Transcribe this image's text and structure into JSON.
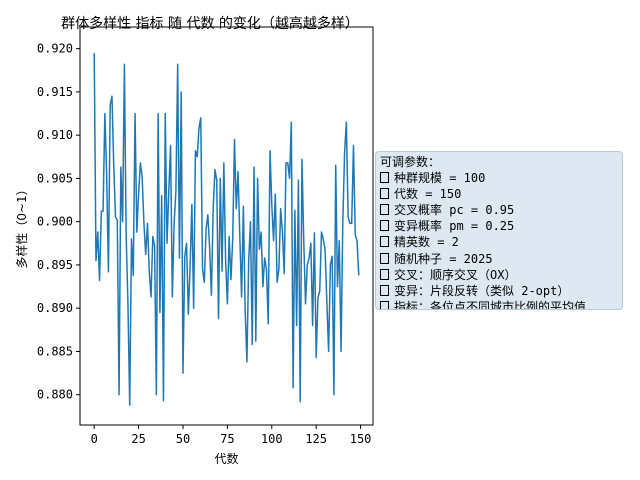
{
  "chart_data": {
    "type": "line",
    "title": "群体多样性 指标 随 代数 的变化（越高越多样）",
    "xlabel": "代数",
    "ylabel": "多样性（0~1）",
    "xlim": [
      -8,
      157
    ],
    "ylim": [
      0.8765,
      0.9225
    ],
    "xticks": [
      0,
      25,
      50,
      75,
      100,
      125,
      150
    ],
    "yticks": [
      0.88,
      0.885,
      0.89,
      0.895,
      0.9,
      0.905,
      0.91,
      0.915,
      0.92
    ],
    "grid": false,
    "line_color": "#1f77b4",
    "series": [
      {
        "x": [
          0,
          1,
          2,
          3,
          4,
          5,
          6,
          7,
          8,
          9,
          10,
          11,
          12,
          13,
          14,
          15,
          16,
          17,
          18,
          19,
          20,
          21,
          22,
          23,
          24,
          25,
          26,
          27,
          28,
          29,
          30,
          31,
          32,
          33,
          34,
          35,
          36,
          37,
          38,
          39,
          40,
          41,
          42,
          43,
          44,
          45,
          46,
          47,
          48,
          49,
          50,
          51,
          52,
          53,
          54,
          55,
          56,
          57,
          58,
          59,
          60,
          61,
          62,
          63,
          64,
          65,
          66,
          67,
          68,
          69,
          70,
          71,
          72,
          73,
          74,
          75,
          76,
          77,
          78,
          79,
          80,
          81,
          82,
          83,
          84,
          85,
          86,
          87,
          88,
          89,
          90,
          91,
          92,
          93,
          94,
          95,
          96,
          97,
          98,
          99,
          100,
          101,
          102,
          103,
          104,
          105,
          106,
          107,
          108,
          109,
          110,
          111,
          112,
          113,
          114,
          115,
          116,
          117,
          118,
          119,
          120,
          121,
          122,
          123,
          124,
          125,
          126,
          127,
          128,
          129,
          130,
          131,
          132,
          133,
          134,
          135,
          136,
          137,
          138,
          139,
          140,
          141,
          142,
          143,
          144,
          145,
          146,
          147,
          148,
          149
        ],
        "values": [
          0.9195,
          0.8955,
          0.8988,
          0.8932,
          0.9012,
          0.9012,
          0.9125,
          0.9055,
          0.8942,
          0.9135,
          0.9145,
          0.9065,
          0.9005,
          0.9002,
          0.88,
          0.9063,
          0.9,
          0.9182,
          0.8983,
          0.8905,
          0.8788,
          0.898,
          0.8938,
          0.9125,
          0.8988,
          0.9032,
          0.9068,
          0.9052,
          0.8998,
          0.8962,
          0.8998,
          0.8943,
          0.8913,
          0.8983,
          0.8972,
          0.88,
          0.9125,
          0.8895,
          0.903,
          0.8793,
          0.9125,
          0.8975,
          0.9035,
          0.9088,
          0.8913,
          0.8998,
          0.9035,
          0.9182,
          0.8958,
          0.915,
          0.8825,
          0.896,
          0.8975,
          0.8893,
          0.8948,
          0.902,
          0.89,
          0.9082,
          0.9075,
          0.9108,
          0.912,
          0.8945,
          0.893,
          0.8992,
          0.9008,
          0.897,
          0.8915,
          0.9015,
          0.906,
          0.9048,
          0.8888,
          0.905,
          0.8943,
          0.9068,
          0.8955,
          0.8905,
          0.8983,
          0.8933,
          0.898,
          0.9095,
          0.9015,
          0.9058,
          0.8983,
          0.8913,
          0.9018,
          0.8898,
          0.8838,
          0.8955,
          0.9,
          0.8858,
          0.9063,
          0.8862,
          0.905,
          0.8968,
          0.8988,
          0.8925,
          0.8958,
          0.8945,
          0.8882,
          0.9082,
          0.902,
          0.8978,
          0.9032,
          0.893,
          0.8945,
          0.9015,
          0.8988,
          0.894,
          0.9068,
          0.9068,
          0.905,
          0.9115,
          0.8808,
          0.9013,
          0.888,
          0.9048,
          0.8792,
          0.9072,
          0.8978,
          0.8905,
          0.895,
          0.8958,
          0.8975,
          0.888,
          0.8987,
          0.8843,
          0.8912,
          0.892,
          0.8988,
          0.898,
          0.8968,
          0.8908,
          0.885,
          0.895,
          0.896,
          0.88,
          0.9065,
          0.8925,
          0.8978,
          0.885,
          0.9,
          0.908,
          0.9115,
          0.9005,
          0.8998,
          0.8998,
          0.9088,
          0.8985,
          0.8978,
          0.8938
        ]
      }
    ]
  },
  "info_box": {
    "header": "可调参数：",
    "lines": [
      "种群规模 = 100",
      "代数 = 150",
      "交叉概率 pc = 0.95",
      "变异概率 pm = 0.25",
      "精英数 = 2",
      "随机种子 = 2025",
      "交叉：顺序交叉（OX）",
      "变异：片段反转（类似 2-opt）",
      "指标：各位点不同城市比例的平均值"
    ]
  }
}
